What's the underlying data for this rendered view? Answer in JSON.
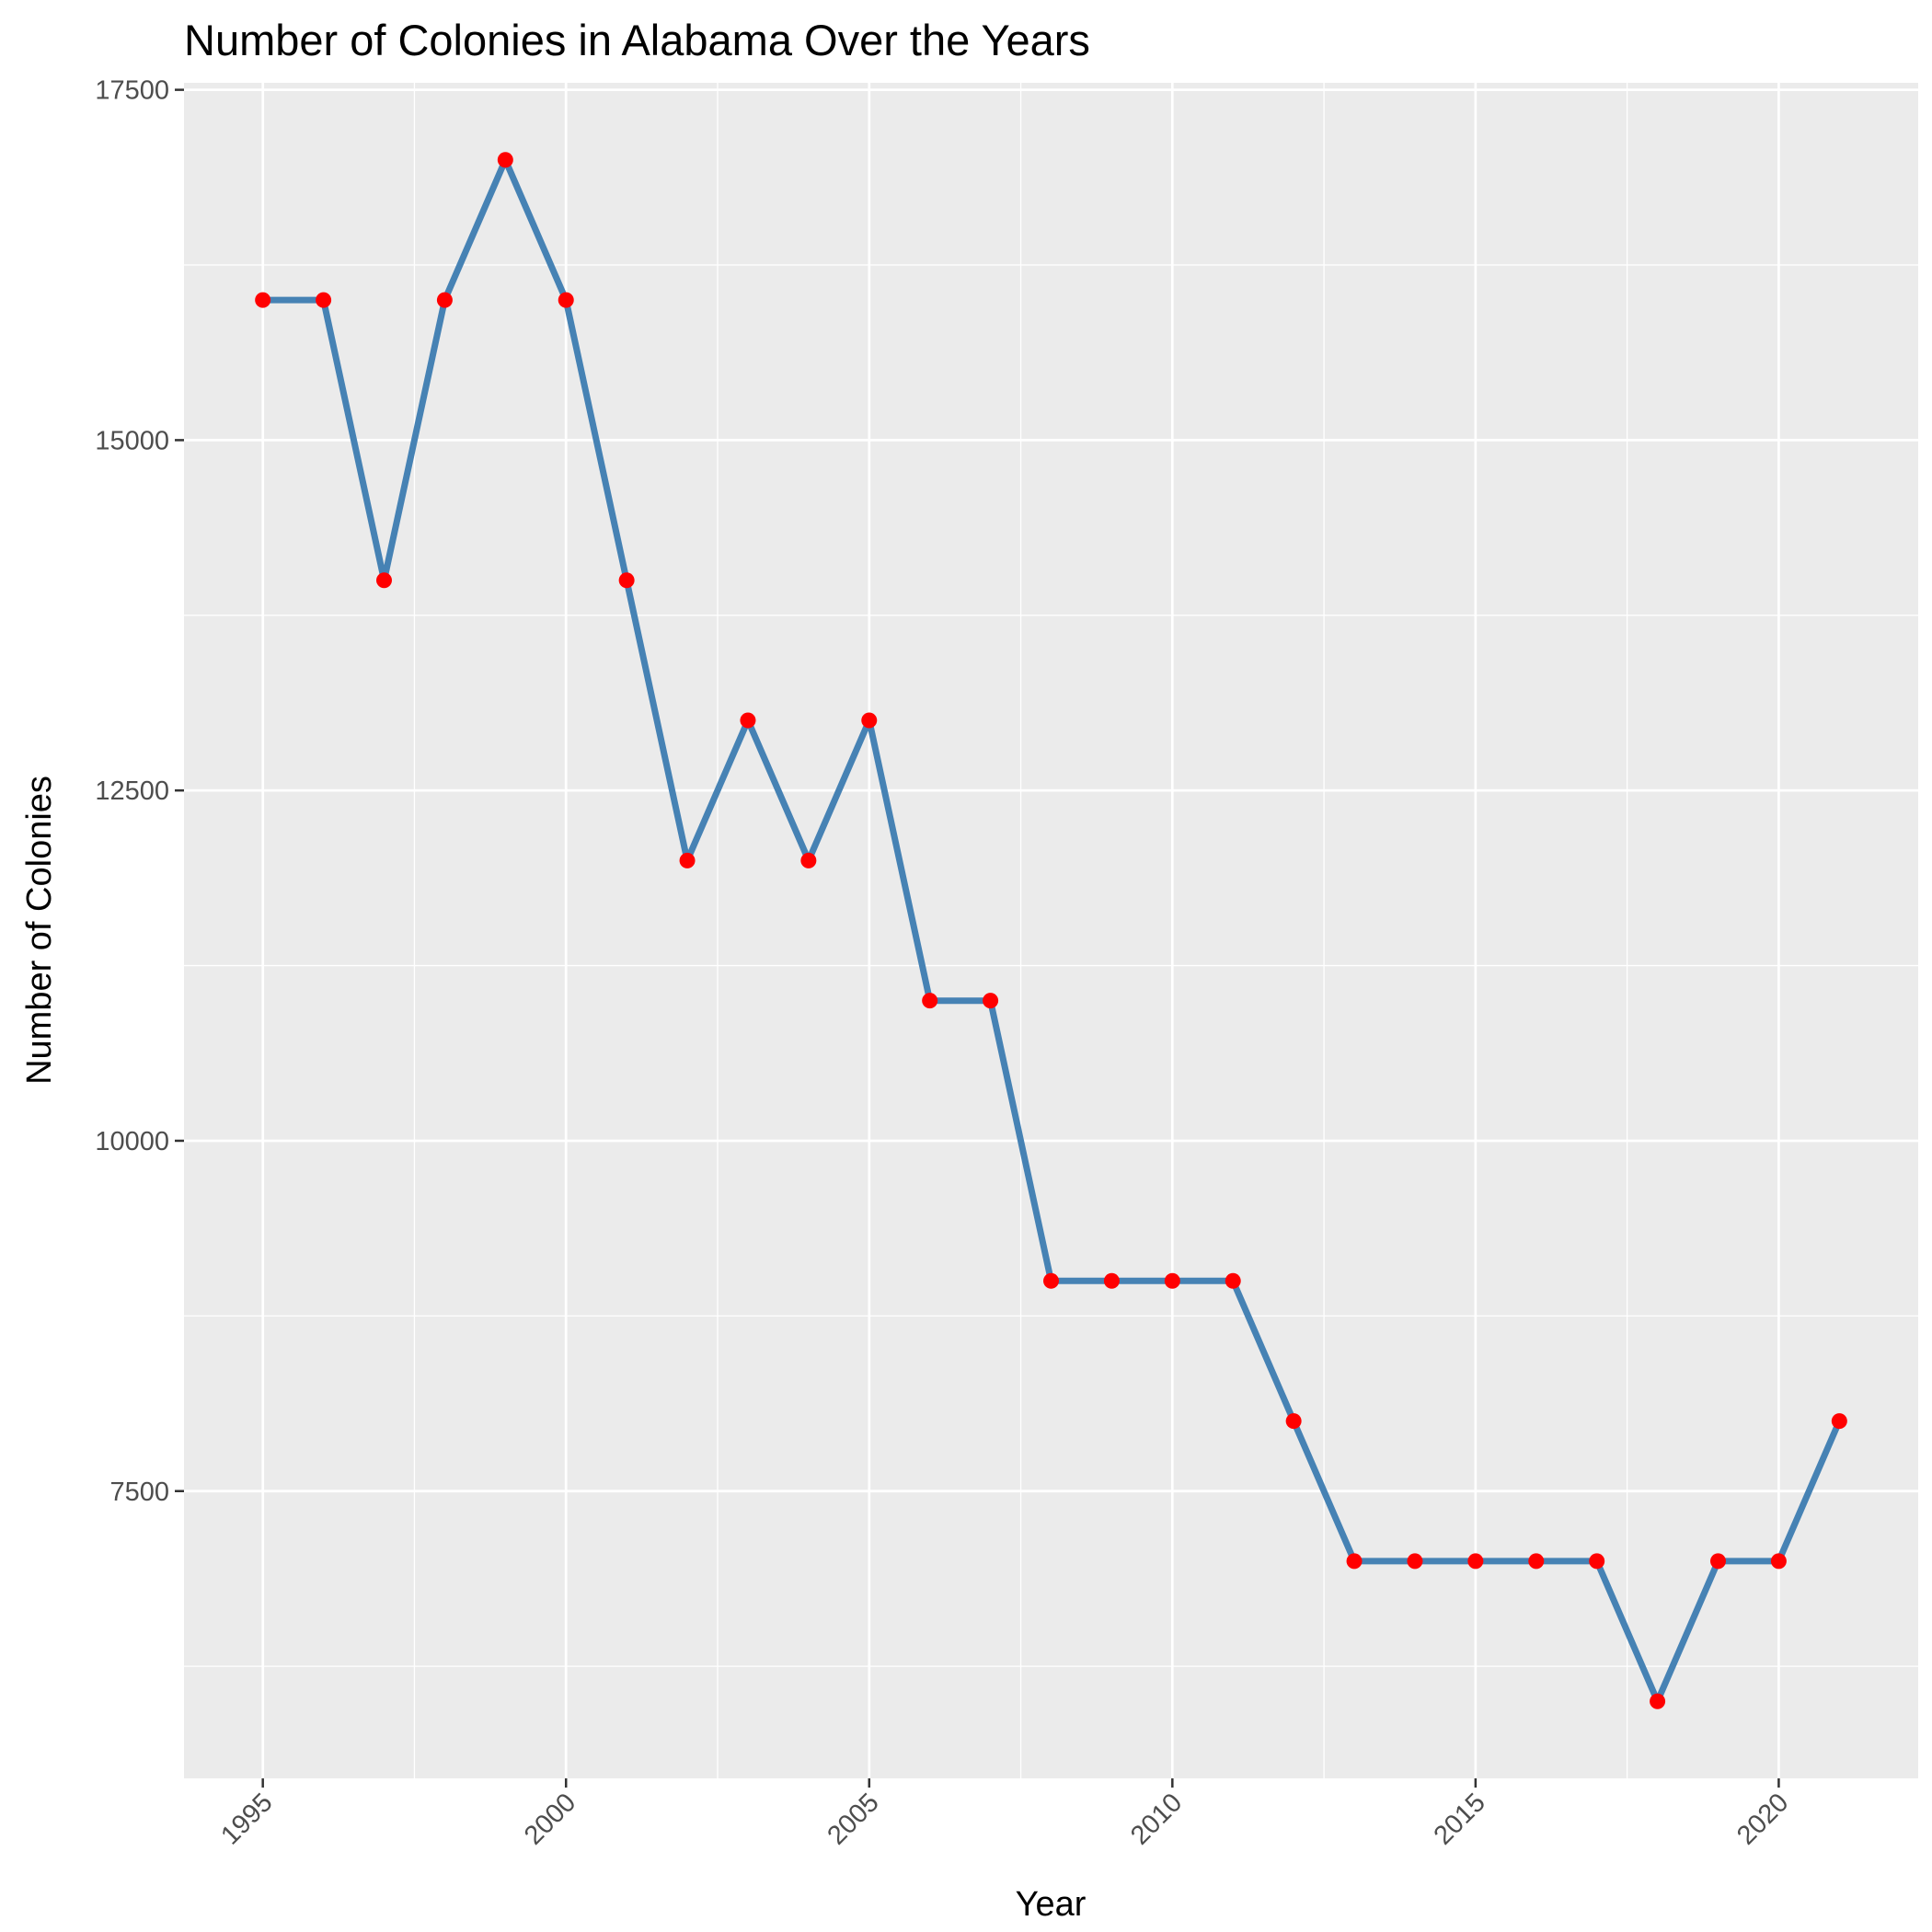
{
  "chart_data": {
    "type": "line",
    "title": "Number of Colonies in Alabama Over the Years",
    "xlabel": "Year",
    "ylabel": "Number of Colonies",
    "x": [
      1995,
      1996,
      1997,
      1998,
      1999,
      2000,
      2001,
      2002,
      2003,
      2004,
      2005,
      2006,
      2007,
      2008,
      2009,
      2010,
      2011,
      2012,
      2013,
      2014,
      2015,
      2016,
      2017,
      2018,
      2019,
      2020,
      2021
    ],
    "series": [
      {
        "values": [
          16000,
          16000,
          14000,
          16000,
          17000,
          16000,
          14000,
          12000,
          13000,
          12000,
          13000,
          11000,
          11000,
          9000,
          9000,
          9000,
          9000,
          8000,
          7000,
          7000,
          7000,
          7000,
          7000,
          6000,
          7000,
          7000,
          8000
        ],
        "line_color": "#4682B4",
        "point_color": "#FF0000"
      }
    ],
    "xlim": [
      1993.7,
      2022.3
    ],
    "ylim": [
      5450,
      17550
    ],
    "x_ticks": [
      "1995",
      "2000",
      "2005",
      "2010",
      "2015",
      "2020"
    ],
    "y_ticks": [
      "7500",
      "10000",
      "12500",
      "15000",
      "17500"
    ],
    "grid": true,
    "panel_background": "#EBEBEB",
    "grid_color": "#FFFFFF"
  }
}
